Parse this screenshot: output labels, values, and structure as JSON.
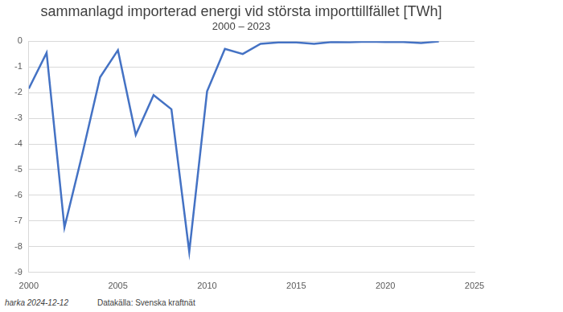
{
  "chart_data": {
    "type": "line",
    "title": "sammanlagd importerad energi vid största importtillfället [TWh]",
    "subtitle": "2000 – 2023",
    "annotations": [
      "harka 2024-12-12",
      "Datakälla: Svenska kraftnät"
    ],
    "x": [
      2000,
      2001,
      2002,
      2003,
      2004,
      2005,
      2006,
      2007,
      2008,
      2009,
      2010,
      2011,
      2012,
      2013,
      2014,
      2015,
      2016,
      2017,
      2018,
      2019,
      2020,
      2021,
      2022,
      2023
    ],
    "values": [
      -1.85,
      -0.45,
      -7.25,
      -4.4,
      -1.4,
      -0.35,
      -3.65,
      -2.1,
      -2.65,
      -8.2,
      -1.95,
      -0.3,
      -0.5,
      -0.1,
      -0.05,
      -0.05,
      -0.1,
      -0.03,
      -0.04,
      -0.02,
      -0.03,
      -0.03,
      -0.07,
      -0.01
    ],
    "color": "#4472c4",
    "xlim": [
      2000,
      2025
    ],
    "xticks": [
      2000,
      2005,
      2010,
      2015,
      2020,
      2025
    ],
    "ylim": [
      -9,
      0
    ],
    "yticks": [
      -9,
      -8,
      -7,
      -6,
      -5,
      -4,
      -3,
      -2,
      -1,
      0
    ],
    "grid": true
  }
}
